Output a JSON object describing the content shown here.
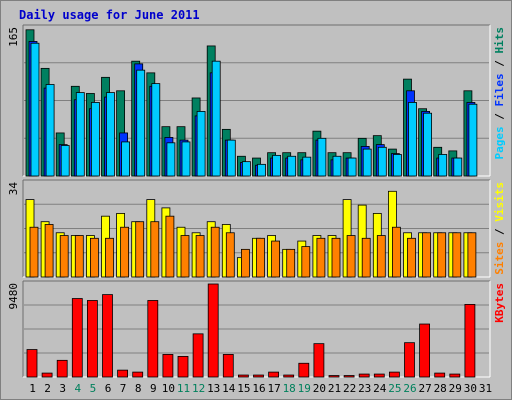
{
  "chart_data": {
    "type": "bar",
    "title": "Daily usage for June 2011",
    "categories": [
      "1",
      "2",
      "3",
      "4",
      "5",
      "6",
      "7",
      "8",
      "9",
      "10",
      "11",
      "12",
      "13",
      "14",
      "15",
      "16",
      "17",
      "18",
      "19",
      "20",
      "21",
      "22",
      "23",
      "24",
      "25",
      "26",
      "27",
      "28",
      "29",
      "30",
      "31"
    ],
    "weekend_days": [
      "4",
      "5",
      "11",
      "12",
      "18",
      "19",
      "25",
      "26"
    ],
    "panels": [
      {
        "name": "pages-files-hits",
        "ymax_label": "165",
        "ylim": [
          0,
          165
        ],
        "legend": [
          {
            "text": "Pages",
            "color": "#00ccff"
          },
          {
            "text": " / ",
            "color": "#000000"
          },
          {
            "text": "Files",
            "color": "#0033ff"
          },
          {
            "text": " / ",
            "color": "#000000"
          },
          {
            "text": "Hits",
            "color": "#008060"
          }
        ],
        "series": [
          {
            "name": "Hits",
            "color": "#008060",
            "values": [
              163,
              120,
              48,
              100,
              92,
              110,
              95,
              128,
              115,
              55,
              55,
              87,
              145,
              52,
              22,
              20,
              26,
              26,
              26,
              50,
              26,
              26,
              42,
              45,
              30,
              108,
              75,
              32,
              28,
              95,
              null
            ]
          },
          {
            "name": "Files",
            "color": "#0033ff",
            "values": [
              150,
              98,
              35,
              85,
              75,
              88,
              48,
              125,
              100,
              43,
              40,
              67,
              115,
              40,
              15,
              12,
              20,
              20,
              18,
              40,
              18,
              20,
              33,
              35,
              25,
              95,
              72,
              20,
              20,
              82,
              null
            ]
          },
          {
            "name": "Pages",
            "color": "#00ccff",
            "values": [
              148,
              102,
              34,
              93,
              82,
              93,
              38,
              118,
              103,
              37,
              38,
              72,
              128,
              40,
              16,
              13,
              23,
              22,
              21,
              42,
              22,
              20,
              30,
              32,
              24,
              82,
              70,
              24,
              20,
              80,
              null
            ]
          }
        ]
      },
      {
        "name": "visits-sites",
        "ymax_label": "34",
        "ylim": [
          0,
          34
        ],
        "legend": [
          {
            "text": "Sites",
            "color": "#ff8000"
          },
          {
            "text": " / ",
            "color": "#000000"
          },
          {
            "text": "Visits",
            "color": "#ffff00"
          }
        ],
        "series": [
          {
            "name": "Visits",
            "color": "#ffff00",
            "values": [
              28,
              20,
              16,
              15,
              15,
              22,
              23,
              20,
              28,
              25,
              18,
              16,
              20,
              19,
              7,
              14,
              15,
              10,
              13,
              15,
              15,
              28,
              26,
              23,
              31,
              16,
              16,
              16,
              16,
              16,
              null
            ]
          },
          {
            "name": "Sites",
            "color": "#ff8000",
            "values": [
              18,
              19,
              15,
              15,
              14,
              14,
              18,
              20,
              20,
              22,
              15,
              15,
              18,
              16,
              10,
              14,
              13,
              10,
              11,
              14,
              14,
              15,
              14,
              15,
              18,
              14,
              16,
              16,
              16,
              16,
              null
            ]
          }
        ]
      },
      {
        "name": "kbytes",
        "ymax_label": "9480",
        "ylim": [
          0,
          9480
        ],
        "legend": [
          {
            "text": "KBytes",
            "color": "#ff0000"
          }
        ],
        "series": [
          {
            "name": "KBytes",
            "color": "#ff0000",
            "values": [
              2800,
              400,
              1700,
              8000,
              7800,
              8400,
              700,
              500,
              7800,
              2300,
              2100,
              4400,
              9480,
              2300,
              200,
              200,
              500,
              200,
              1400,
              3400,
              150,
              150,
              300,
              300,
              500,
              3500,
              5400,
              400,
              300,
              7400,
              null
            ]
          }
        ]
      }
    ]
  },
  "colors": {
    "background": "#c0c0c0",
    "weekend_label": "#00805c",
    "weekday_label": "#000000",
    "title": "#0000cc",
    "gridline": "#808080"
  }
}
